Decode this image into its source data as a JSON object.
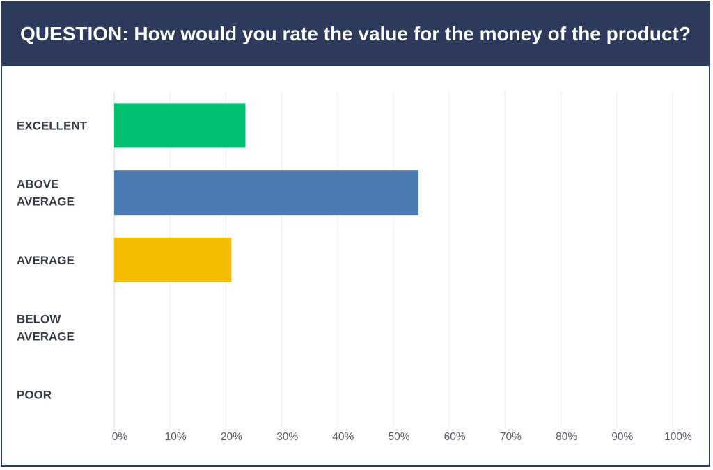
{
  "header": {
    "title": "QUESTION: How would you rate the value for the money of the product?"
  },
  "chart_data": {
    "type": "bar",
    "orientation": "horizontal",
    "title": "QUESTION: How would you rate the value for the money of the product?",
    "categories": [
      "EXCELLENT",
      "ABOVE AVERAGE",
      "AVERAGE",
      "BELOW AVERAGE",
      "POOR"
    ],
    "category_lines": [
      [
        "EXCELLENT"
      ],
      [
        "ABOVE",
        "AVERAGE"
      ],
      [
        "AVERAGE"
      ],
      [
        "BELOW",
        "AVERAGE"
      ],
      [
        "POOR"
      ]
    ],
    "values": [
      23.5,
      54.5,
      21,
      0,
      0
    ],
    "value_unit": "%",
    "colors": [
      "#00c06f",
      "#4c7bb4",
      "#f5bd00",
      "#a0a0a0",
      "#a0a0a0"
    ],
    "xlim": [
      0,
      100
    ],
    "xticks": [
      0,
      10,
      20,
      30,
      40,
      50,
      60,
      70,
      80,
      90,
      100
    ],
    "xtick_labels": [
      "0%",
      "10%",
      "20%",
      "30%",
      "40%",
      "50%",
      "60%",
      "70%",
      "80%",
      "90%",
      "100%"
    ],
    "grid": true,
    "legend": "none",
    "xlabel": "",
    "ylabel": ""
  }
}
